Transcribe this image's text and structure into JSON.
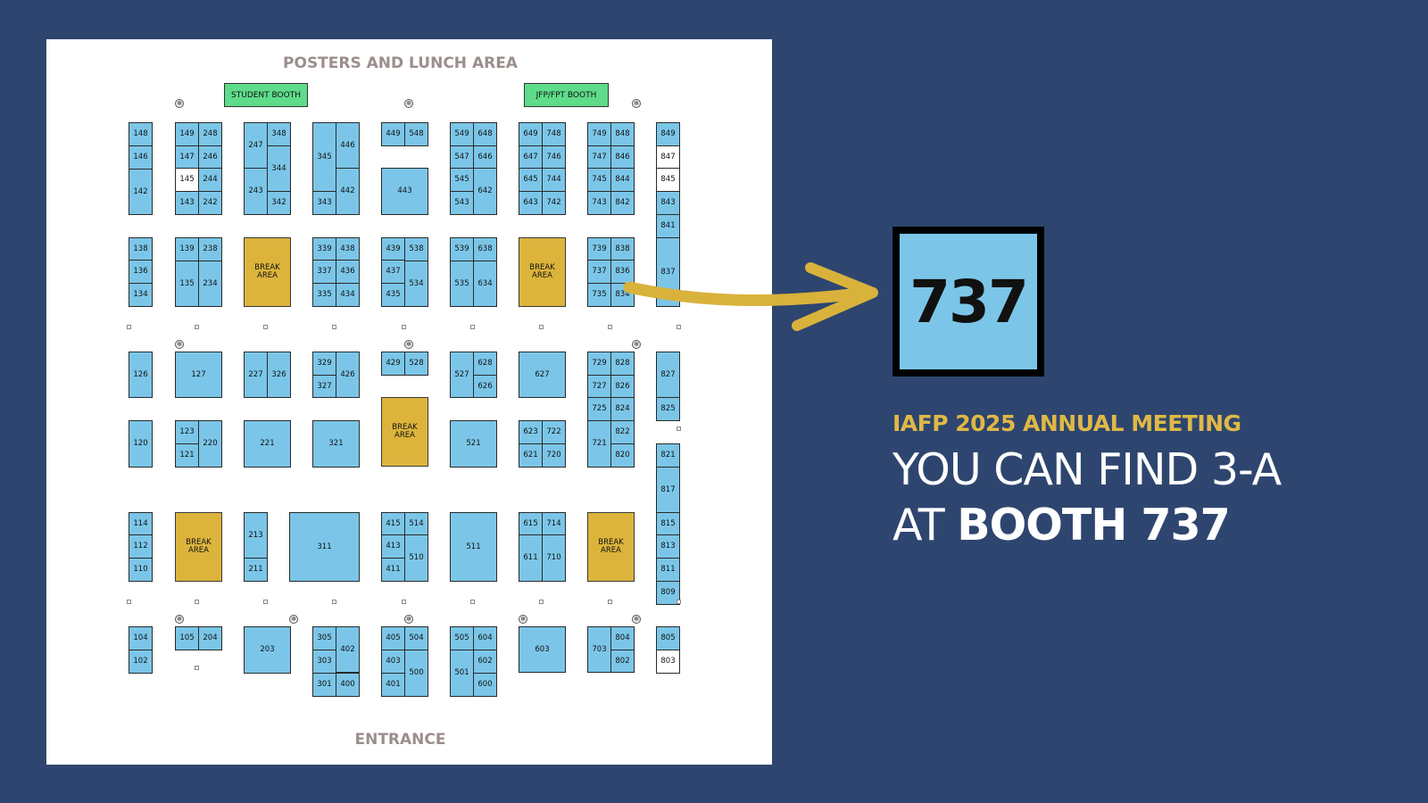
{
  "map": {
    "title": "POSTERS AND LUNCH AREA",
    "entrance": "ENTRANCE",
    "special_booths": [
      "STUDENT BOOTH",
      "JFP/FPT BOOTH"
    ],
    "break_label": [
      "BREAK",
      "AREA"
    ],
    "booths": [
      "148",
      "146",
      "142",
      "149",
      "248",
      "147",
      "246",
      "145",
      "244",
      "143",
      "242",
      "247",
      "348",
      "344",
      "243",
      "342",
      "345",
      "446",
      "442",
      "343",
      "449",
      "548",
      "443",
      "549",
      "648",
      "547",
      "646",
      "545",
      "642",
      "543",
      "649",
      "748",
      "647",
      "746",
      "645",
      "744",
      "643",
      "742",
      "749",
      "848",
      "747",
      "846",
      "745",
      "844",
      "743",
      "842",
      "849",
      "847",
      "845",
      "843",
      "841",
      "837",
      "138",
      "136",
      "134",
      "139",
      "238",
      "135",
      "234",
      "339",
      "438",
      "337",
      "436",
      "335",
      "434",
      "439",
      "538",
      "437",
      "534",
      "435",
      "539",
      "638",
      "535",
      "634",
      "739",
      "838",
      "737",
      "836",
      "735",
      "834",
      "126",
      "127",
      "227",
      "326",
      "329",
      "426",
      "327",
      "429",
      "528",
      "527",
      "628",
      "626",
      "627",
      "729",
      "828",
      "727",
      "826",
      "725",
      "824",
      "827",
      "825",
      "120",
      "123",
      "220",
      "121",
      "221",
      "321",
      "521",
      "623",
      "722",
      "621",
      "720",
      "721",
      "822",
      "820",
      "821",
      "817",
      "815",
      "813",
      "811",
      "809",
      "114",
      "112",
      "110",
      "213",
      "211",
      "311",
      "415",
      "514",
      "413",
      "510",
      "411",
      "511",
      "615",
      "714",
      "611",
      "710",
      "104",
      "102",
      "105",
      "204",
      "203",
      "305",
      "402",
      "303",
      "301",
      "400",
      "405",
      "504",
      "403",
      "500",
      "401",
      "505",
      "604",
      "501",
      "602",
      "600",
      "603",
      "703",
      "804",
      "802",
      "805",
      "803"
    ]
  },
  "highlight_booth": "737",
  "subtitle": "IAFP 2025 ANNUAL MEETING",
  "headline": {
    "line1": "YOU CAN FIND 3-A",
    "line2_prefix": "AT ",
    "line2_bold": "BOOTH 737"
  },
  "colors": {
    "background": "#2e466f",
    "booth": "#7bc6e8",
    "break_area": "#dcb43c",
    "special_booth": "#5edc8a",
    "accent": "#e0b846",
    "arrow": "#d9b23c"
  }
}
